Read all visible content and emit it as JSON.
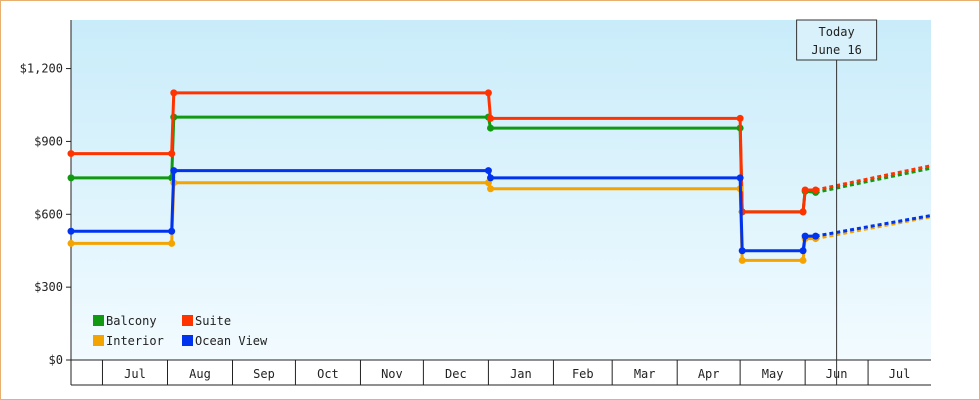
{
  "chart_data": {
    "type": "line",
    "step": true,
    "y_axis": {
      "range": [
        0,
        1400
      ],
      "ticks": [
        0,
        300,
        600,
        900,
        1200
      ],
      "tick_labels": [
        "$0",
        "$300",
        "$600",
        "$900",
        "$1,200"
      ]
    },
    "x_axis": {
      "range": [
        "2020-06-16",
        "2021-07-31"
      ],
      "month_boundaries": [
        "2020-07-01",
        "2020-08-01",
        "2020-09-01",
        "2020-10-01",
        "2020-11-01",
        "2020-12-01",
        "2021-01-01",
        "2021-02-01",
        "2021-03-01",
        "2021-04-01",
        "2021-05-01",
        "2021-06-01",
        "2021-07-01"
      ],
      "tick_labels": [
        "Jul",
        "Aug",
        "Sep",
        "Oct",
        "Nov",
        "Dec",
        "Jan",
        "Feb",
        "Mar",
        "Apr",
        "May",
        "Jun",
        "Jul"
      ]
    },
    "today_marker": {
      "date": "2021-06-16",
      "line1": "Today",
      "line2": "June 16"
    },
    "legend": {
      "placement": "bottom-left"
    },
    "colors": {
      "background_top": "#c9ecfa",
      "background_bottom": "#f2fbff",
      "frame": "#e8b070"
    },
    "series": [
      {
        "name": "Balcony",
        "color": "#119911",
        "points": [
          [
            "2020-06-16",
            750
          ],
          [
            "2020-08-03",
            750
          ],
          [
            "2020-08-04",
            1000
          ],
          [
            "2021-01-01",
            1000
          ],
          [
            "2021-01-02",
            955
          ],
          [
            "2021-05-01",
            955
          ],
          [
            "2021-05-02",
            610
          ],
          [
            "2021-05-31",
            610
          ],
          [
            "2021-06-01",
            695
          ],
          [
            "2021-06-06",
            690
          ]
        ],
        "projection": [
          [
            "2021-06-06",
            690
          ],
          [
            "2021-07-31",
            790
          ]
        ]
      },
      {
        "name": "Suite",
        "color": "#ff3300",
        "points": [
          [
            "2020-06-16",
            850
          ],
          [
            "2020-08-03",
            850
          ],
          [
            "2020-08-04",
            1100
          ],
          [
            "2021-01-01",
            1100
          ],
          [
            "2021-01-02",
            995
          ],
          [
            "2021-05-01",
            995
          ],
          [
            "2021-05-02",
            610
          ],
          [
            "2021-05-31",
            610
          ],
          [
            "2021-06-01",
            700
          ],
          [
            "2021-06-06",
            700
          ]
        ],
        "projection": [
          [
            "2021-06-06",
            700
          ],
          [
            "2021-07-31",
            800
          ]
        ]
      },
      {
        "name": "Interior",
        "color": "#f4a400",
        "points": [
          [
            "2020-06-16",
            480
          ],
          [
            "2020-08-03",
            480
          ],
          [
            "2020-08-04",
            730
          ],
          [
            "2021-01-01",
            730
          ],
          [
            "2021-01-02",
            705
          ],
          [
            "2021-05-01",
            705
          ],
          [
            "2021-05-02",
            410
          ],
          [
            "2021-05-31",
            410
          ],
          [
            "2021-06-01",
            500
          ],
          [
            "2021-06-06",
            500
          ]
        ],
        "projection": [
          [
            "2021-06-06",
            500
          ],
          [
            "2021-07-31",
            590
          ]
        ]
      },
      {
        "name": "Ocean View",
        "color": "#0033ee",
        "points": [
          [
            "2020-06-16",
            530
          ],
          [
            "2020-08-03",
            530
          ],
          [
            "2020-08-04",
            780
          ],
          [
            "2021-01-01",
            780
          ],
          [
            "2021-01-02",
            750
          ],
          [
            "2021-05-01",
            750
          ],
          [
            "2021-05-02",
            450
          ],
          [
            "2021-05-31",
            450
          ],
          [
            "2021-06-01",
            510
          ],
          [
            "2021-06-06",
            510
          ]
        ],
        "projection": [
          [
            "2021-06-06",
            510
          ],
          [
            "2021-07-31",
            595
          ]
        ]
      }
    ]
  }
}
